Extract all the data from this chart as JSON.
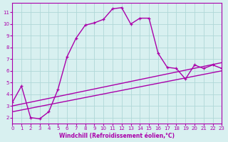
{
  "xlabel": "Windchill (Refroidissement éolien,°C)",
  "bg_color": "#d8f0f0",
  "grid_color": "#b0d8d8",
  "line_color": "#aa00aa",
  "xlim": [
    0,
    23
  ],
  "ylim": [
    1.5,
    11.8
  ],
  "xticks": [
    0,
    1,
    2,
    3,
    4,
    5,
    6,
    7,
    8,
    9,
    10,
    11,
    12,
    13,
    14,
    15,
    16,
    17,
    18,
    19,
    20,
    21,
    22,
    23
  ],
  "yticks": [
    2,
    3,
    4,
    5,
    6,
    7,
    8,
    9,
    10,
    11
  ],
  "series1_x": [
    0,
    1,
    2,
    3,
    4,
    5,
    6,
    7,
    8,
    9,
    10,
    11,
    12,
    13,
    14,
    15,
    16,
    17,
    18,
    19,
    20,
    21,
    22,
    23
  ],
  "series1_y": [
    3.3,
    4.7,
    2.0,
    1.9,
    2.5,
    4.4,
    7.2,
    8.8,
    9.9,
    10.1,
    10.4,
    11.3,
    11.4,
    10.0,
    10.5,
    10.5,
    7.5,
    6.3,
    6.2,
    5.3,
    6.5,
    6.2,
    6.5,
    6.2
  ],
  "series2_x": [
    0,
    23
  ],
  "series2_y": [
    2.5,
    6.0
  ],
  "series3_x": [
    0,
    23
  ],
  "series3_y": [
    3.0,
    6.7
  ]
}
